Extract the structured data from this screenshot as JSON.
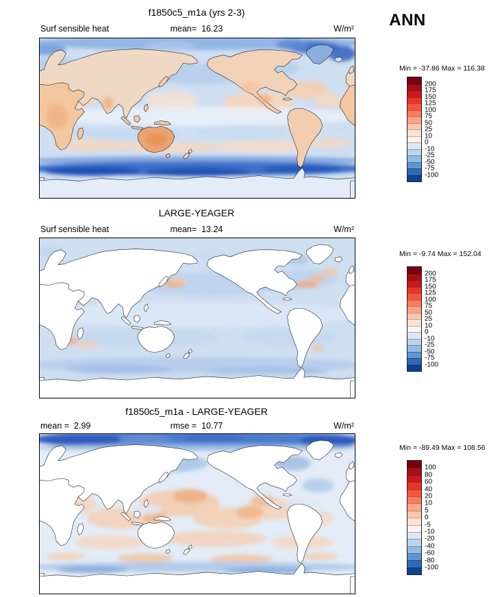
{
  "season": "ANN",
  "panels": [
    {
      "title": "f1850c5_m1a (yrs 2-3)",
      "left_label": "Surf sensible heat",
      "mid_label": "mean=  16.23",
      "units": "W/m²",
      "minmax": "Min = -37.86 Max = 116.38",
      "colorbar": {
        "labels": [
          "200",
          "175",
          "150",
          "125",
          "100",
          "75",
          "50",
          "25",
          "10",
          "0",
          "-10",
          "-25",
          "-50",
          "-75",
          "-100"
        ],
        "colors": [
          "#7a0010",
          "#a50f15",
          "#cb181d",
          "#e83429",
          "#f6553d",
          "#fb7c5c",
          "#fca486",
          "#fdc6ae",
          "#fee3d4",
          "#fdf3ec",
          "#dce8f5",
          "#bcd5ee",
          "#92bce2",
          "#5f96d2",
          "#3069bc",
          "#0b4394"
        ]
      }
    },
    {
      "title": "LARGE-YEAGER",
      "left_label": "Surf sensible heat",
      "mid_label": "mean=  13.24",
      "units": "W/m²",
      "minmax": "Min = -9.74 Max = 152.04",
      "colorbar": {
        "labels": [
          "200",
          "175",
          "150",
          "125",
          "100",
          "75",
          "50",
          "25",
          "10",
          "0",
          "-10",
          "-25",
          "-50",
          "-75",
          "-100"
        ],
        "colors": [
          "#7a0010",
          "#a50f15",
          "#cb181d",
          "#e83429",
          "#f6553d",
          "#fb7c5c",
          "#fca486",
          "#fdc6ae",
          "#fee3d4",
          "#fdf3ec",
          "#dce8f5",
          "#bcd5ee",
          "#92bce2",
          "#5f96d2",
          "#3069bc",
          "#0b4394"
        ]
      }
    },
    {
      "title": "f1850c5_m1a - LARGE-YEAGER",
      "left_label": "mean =  2.99",
      "mid_label": "rmse =  10.77",
      "units": "W/m²",
      "minmax": "Min = -89.49 Max = 108.56",
      "colorbar": {
        "labels": [
          "100",
          "80",
          "60",
          "40",
          "20",
          "10",
          "5",
          "0",
          "-5",
          "-10",
          "-20",
          "-40",
          "-60",
          "-80",
          "-100"
        ],
        "colors": [
          "#7a0010",
          "#a50f15",
          "#cb181d",
          "#e83429",
          "#f6553d",
          "#fb7c5c",
          "#fca486",
          "#fdc6ae",
          "#fee3d4",
          "#fdf3ec",
          "#dce8f5",
          "#bcd5ee",
          "#92bce2",
          "#5f96d2",
          "#3069bc",
          "#0b4394"
        ]
      }
    }
  ],
  "chart_data": {
    "type": "heatmap",
    "subtype": "global lat-lon contour map comparison (model vs obs vs difference)",
    "season": "ANN",
    "variable": "Surf sensible heat",
    "units": "W/m2",
    "legend_position": "right",
    "panels": [
      {
        "title": "f1850c5_m1a (yrs 2-3)",
        "mean": 16.23,
        "min": -37.86,
        "max": 116.38,
        "contour_levels": [
          -100,
          -75,
          -50,
          -25,
          -10,
          0,
          10,
          25,
          50,
          75,
          100,
          125,
          150,
          175,
          200
        ],
        "data_coverage": "global (land and ocean)"
      },
      {
        "title": "LARGE-YEAGER",
        "mean": 13.24,
        "min": -9.74,
        "max": 152.04,
        "contour_levels": [
          -100,
          -75,
          -50,
          -25,
          -10,
          0,
          10,
          25,
          50,
          75,
          100,
          125,
          150,
          175,
          200
        ],
        "data_coverage": "ocean only (land masked white)"
      },
      {
        "title": "f1850c5_m1a - LARGE-YEAGER",
        "mean": 2.99,
        "rmse": 10.77,
        "min": -89.49,
        "max": 108.56,
        "contour_levels": [
          -100,
          -80,
          -60,
          -40,
          -20,
          -10,
          -5,
          0,
          5,
          10,
          20,
          40,
          60,
          80,
          100
        ],
        "data_coverage": "ocean only (land masked white)"
      }
    ]
  }
}
